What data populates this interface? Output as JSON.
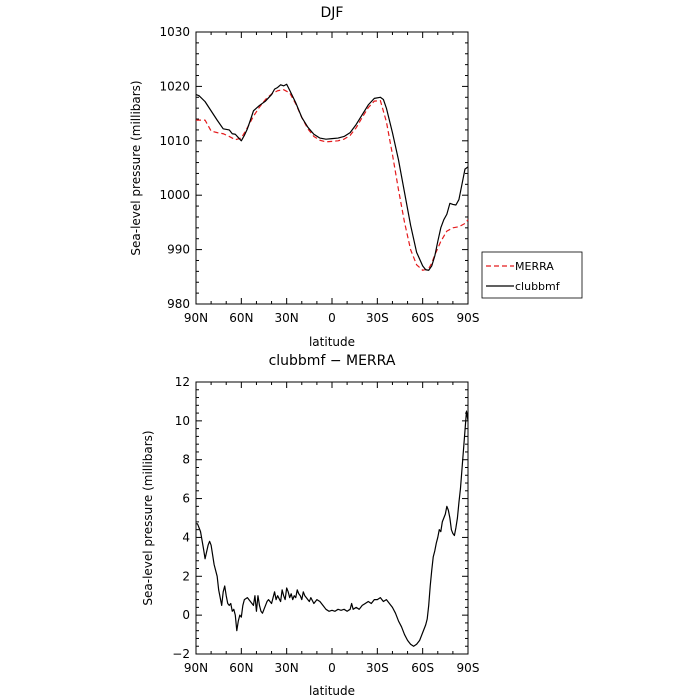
{
  "chart_data": [
    {
      "type": "line",
      "title": "DJF",
      "xlabel": "latitude",
      "ylabel": "Sea-level pressure (millibars)",
      "xlim": [
        90,
        -90
      ],
      "ylim": [
        980,
        1030
      ],
      "xticks": [
        90,
        60,
        30,
        0,
        -30,
        -60,
        -90
      ],
      "xtick_labels": [
        "90N",
        "60N",
        "30N",
        "0",
        "30S",
        "60S",
        "90S"
      ],
      "yticks": [
        980,
        990,
        1000,
        1010,
        1020,
        1030
      ],
      "ytick_labels": [
        "980",
        "990",
        "1000",
        "1010",
        "1020",
        "1030"
      ],
      "legend_position": "right",
      "series": [
        {
          "name": "MERRA",
          "color": "#e41a1c",
          "dash": "dashed",
          "x": [
            90,
            84,
            80,
            76,
            72,
            68,
            64,
            60,
            56,
            52,
            48,
            44,
            40,
            36,
            32,
            28,
            24,
            20,
            16,
            12,
            8,
            4,
            0,
            -4,
            -8,
            -12,
            -16,
            -20,
            -24,
            -28,
            -32,
            -36,
            -40,
            -44,
            -48,
            -52,
            -56,
            -60,
            -64,
            -66,
            -68,
            -72,
            -76,
            -80,
            -84,
            -88,
            -90
          ],
          "y": [
            1013.8,
            1013.8,
            1011.8,
            1011.5,
            1011.3,
            1010.8,
            1010.2,
            1010.5,
            1012.4,
            1014.5,
            1016.2,
            1017.6,
            1018.6,
            1019.2,
            1019.4,
            1018.8,
            1016.8,
            1014.3,
            1012.2,
            1010.8,
            1010.1,
            1009.8,
            1009.9,
            1010.0,
            1010.3,
            1011.0,
            1012.4,
            1014.3,
            1016.1,
            1017.3,
            1017.4,
            1013.5,
            1007.5,
            1001.0,
            995.0,
            990.0,
            987.2,
            986.2,
            986.5,
            987.5,
            989.0,
            991.5,
            993.4,
            994.0,
            994.2,
            994.8,
            995.5
          ]
        },
        {
          "name": "clubbmf",
          "color": "#000000",
          "dash": "solid",
          "x": [
            90,
            88,
            84,
            80,
            76,
            72,
            68,
            66,
            64,
            62,
            60,
            58,
            56,
            54,
            52,
            48,
            44,
            40,
            38,
            36,
            34,
            32,
            30,
            28,
            24,
            20,
            16,
            12,
            8,
            4,
            0,
            -4,
            -8,
            -12,
            -16,
            -20,
            -24,
            -28,
            -32,
            -34,
            -36,
            -40,
            -44,
            -48,
            -52,
            -56,
            -60,
            -62,
            -64,
            -66,
            -68,
            -70,
            -72,
            -74,
            -76,
            -78,
            -80,
            -82,
            -84,
            -86,
            -88,
            -90
          ],
          "y": [
            1018.5,
            1018.3,
            1017.2,
            1015.5,
            1013.8,
            1012.2,
            1012.0,
            1011.3,
            1011.2,
            1010.6,
            1010.0,
            1011.0,
            1012.2,
            1013.8,
            1015.5,
            1016.5,
            1017.3,
            1018.5,
            1019.5,
            1019.8,
            1020.3,
            1020.1,
            1020.4,
            1019.3,
            1017.0,
            1014.3,
            1012.5,
            1011.2,
            1010.5,
            1010.3,
            1010.4,
            1010.5,
            1010.8,
            1011.5,
            1013.0,
            1014.8,
            1016.6,
            1017.8,
            1018.0,
            1017.6,
            1016.0,
            1011.5,
            1006.5,
            1000.5,
            994.5,
            989.5,
            987.0,
            986.3,
            986.2,
            987.0,
            988.8,
            991.5,
            994.0,
            995.5,
            996.5,
            998.5,
            998.3,
            998.2,
            999.2,
            1002.0,
            1004.8,
            1005.2
          ]
        }
      ]
    },
    {
      "type": "line",
      "title": "clubbmf − MERRA",
      "xlabel": "latitude",
      "ylabel": "Sea-level pressure (millibars)",
      "xlim": [
        90,
        -90
      ],
      "ylim": [
        -2,
        12
      ],
      "xticks": [
        90,
        60,
        30,
        0,
        -30,
        -60,
        -90
      ],
      "xtick_labels": [
        "90N",
        "60N",
        "30N",
        "0",
        "30S",
        "60S",
        "90S"
      ],
      "yticks": [
        -2,
        0,
        2,
        4,
        6,
        8,
        10,
        12
      ],
      "ytick_labels": [
        "−2",
        "0",
        "2",
        "4",
        "6",
        "8",
        "10",
        "12"
      ],
      "series": [
        {
          "color": "#000000",
          "dash": "solid",
          "x": [
            90,
            89,
            87,
            85,
            84,
            82,
            81,
            80,
            78,
            76,
            75,
            74,
            73,
            72,
            71,
            70,
            69,
            68,
            67,
            66,
            65,
            64,
            63,
            62,
            61,
            60,
            59,
            58,
            56,
            54,
            52,
            51,
            50,
            49,
            48,
            47,
            46,
            45,
            44,
            43,
            42,
            40,
            38,
            37,
            36,
            34,
            33,
            32,
            31,
            30,
            29,
            28,
            27,
            26,
            25,
            24,
            23,
            22,
            21,
            20,
            19,
            18,
            17,
            16,
            15,
            14,
            12,
            10,
            8,
            6,
            4,
            2,
            0,
            -2,
            -4,
            -6,
            -8,
            -10,
            -12,
            -13,
            -14,
            -16,
            -18,
            -20,
            -22,
            -24,
            -26,
            -28,
            -30,
            -32,
            -34,
            -36,
            -38,
            -40,
            -42,
            -44,
            -46,
            -48,
            -50,
            -52,
            -54,
            -56,
            -58,
            -60,
            -62,
            -63,
            -64,
            -65,
            -66,
            -67,
            -68,
            -69,
            -70,
            -71,
            -72,
            -73,
            -74,
            -75,
            -76,
            -77,
            -78,
            -79,
            -80,
            -81,
            -82,
            -83,
            -84,
            -85,
            -86,
            -87,
            -88,
            -89,
            -90
          ],
          "y": [
            4.7,
            4.7,
            4.3,
            3.4,
            2.9,
            3.6,
            3.8,
            3.6,
            2.6,
            2.0,
            1.3,
            0.9,
            0.5,
            1.2,
            1.5,
            1.0,
            0.6,
            0.5,
            0.6,
            0.2,
            0.3,
            0.0,
            -0.8,
            -0.3,
            0.0,
            -0.1,
            0.5,
            0.8,
            0.9,
            0.7,
            0.5,
            1.0,
            0.2,
            1.0,
            0.5,
            0.2,
            0.1,
            0.3,
            0.5,
            0.7,
            0.8,
            0.6,
            1.2,
            0.8,
            1.0,
            0.7,
            1.3,
            1.0,
            0.8,
            1.4,
            1.2,
            0.9,
            1.1,
            0.8,
            1.0,
            0.9,
            1.3,
            1.1,
            1.0,
            0.8,
            1.2,
            1.0,
            0.9,
            0.8,
            0.7,
            0.9,
            0.6,
            0.8,
            0.7,
            0.5,
            0.3,
            0.2,
            0.25,
            0.2,
            0.3,
            0.25,
            0.3,
            0.2,
            0.3,
            0.6,
            0.3,
            0.4,
            0.3,
            0.5,
            0.6,
            0.7,
            0.6,
            0.8,
            0.8,
            0.9,
            0.7,
            0.8,
            0.6,
            0.4,
            0.1,
            -0.3,
            -0.6,
            -1.0,
            -1.3,
            -1.5,
            -1.6,
            -1.5,
            -1.3,
            -0.9,
            -0.5,
            -0.2,
            0.5,
            1.5,
            2.3,
            3.0,
            3.3,
            3.7,
            4.0,
            4.4,
            4.3,
            4.8,
            5.0,
            5.2,
            5.6,
            5.4,
            5.0,
            4.4,
            4.2,
            4.1,
            4.5,
            5.0,
            5.8,
            6.5,
            7.5,
            8.5,
            9.5,
            10.5,
            10.0
          ]
        }
      ]
    }
  ]
}
